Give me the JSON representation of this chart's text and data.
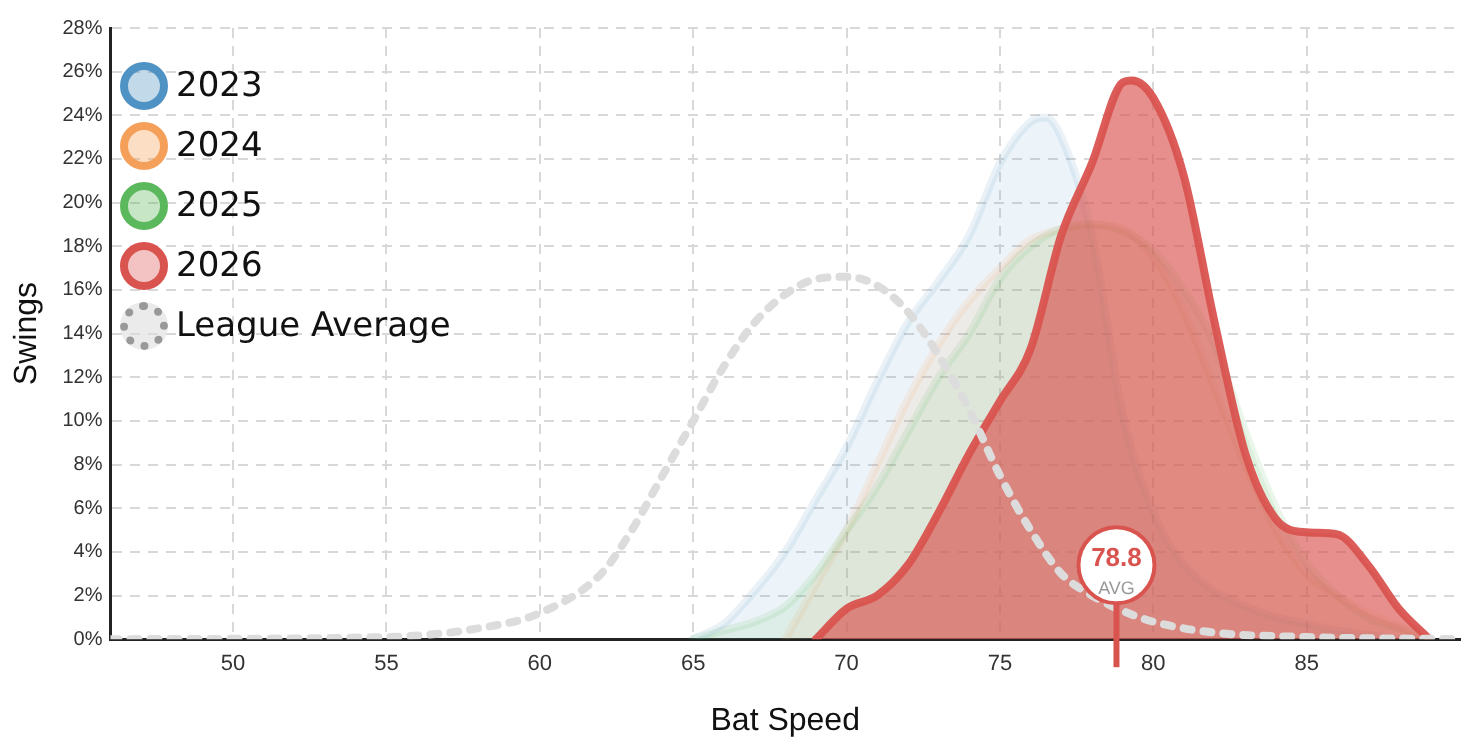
{
  "chart_data": {
    "type": "area",
    "xlabel": "Bat Speed",
    "ylabel": "Swings",
    "xlim": [
      46,
      90
    ],
    "xticks": [
      50,
      55,
      60,
      65,
      70,
      75,
      80,
      85
    ],
    "ylim": [
      0,
      28
    ],
    "yticks": [
      {
        "value": 0,
        "label": "0%"
      },
      {
        "value": 2,
        "label": "2%"
      },
      {
        "value": 4,
        "label": "4%"
      },
      {
        "value": 6,
        "label": "6%"
      },
      {
        "value": 8,
        "label": "8%"
      },
      {
        "value": 10,
        "label": "10%"
      },
      {
        "value": 12,
        "label": "12%"
      },
      {
        "value": 14,
        "label": "14%"
      },
      {
        "value": 16,
        "label": "16%"
      },
      {
        "value": 18,
        "label": "18%"
      },
      {
        "value": 20,
        "label": "20%"
      },
      {
        "value": 22,
        "label": "22%"
      },
      {
        "value": 24,
        "label": "24%"
      },
      {
        "value": 26,
        "label": "26%"
      },
      {
        "value": 28,
        "label": "28%"
      }
    ],
    "grid": true,
    "legend": "top left",
    "marker": "none",
    "series": [
      {
        "name": "2023",
        "color": "#4f93c4",
        "x": [
          65,
          66,
          67,
          68,
          69,
          70,
          71,
          72,
          73,
          74,
          75,
          76,
          76.5,
          77,
          78,
          79,
          80,
          81,
          82,
          83,
          84,
          85,
          86,
          87,
          88
        ],
        "values": [
          0,
          0.7,
          2.2,
          4,
          6.4,
          8.8,
          11.8,
          14.5,
          16.4,
          18.5,
          21.8,
          23.7,
          23.9,
          23,
          18.5,
          10.3,
          5.8,
          3.4,
          2.2,
          1.5,
          1,
          0.7,
          0.4,
          0.2,
          0
        ]
      },
      {
        "name": "2024",
        "color": "#f5a05a",
        "x": [
          68,
          69,
          70,
          71,
          72,
          73,
          74,
          75,
          76,
          77,
          78,
          79,
          80,
          81,
          82,
          83,
          84,
          85,
          86,
          87,
          88,
          89
        ],
        "values": [
          0,
          2.5,
          5,
          8,
          11,
          13.5,
          15.5,
          17,
          18.3,
          18.8,
          19,
          18.8,
          17.5,
          15,
          11.5,
          8,
          5,
          3,
          2,
          1.2,
          0.6,
          0
        ]
      },
      {
        "name": "2025",
        "color": "#5cb85c",
        "x": [
          65,
          66,
          67,
          68,
          69,
          70,
          71,
          72,
          73,
          74,
          75,
          76,
          77,
          78,
          79,
          80,
          81,
          82,
          83,
          84,
          85,
          86,
          87,
          88,
          89
        ],
        "values": [
          0,
          0.4,
          0.8,
          1.5,
          3,
          5,
          7,
          9.5,
          12,
          14,
          16.5,
          18,
          18.8,
          19,
          18.7,
          17.8,
          16,
          13.5,
          9.5,
          6,
          3.5,
          2,
          1,
          0.5,
          0
        ]
      },
      {
        "name": "2026",
        "color": "#d9534f",
        "x": [
          69,
          70,
          71,
          72,
          73,
          74,
          75,
          76,
          77,
          78,
          79,
          79.3,
          80,
          81,
          82,
          83,
          84,
          85,
          86,
          87,
          88,
          89
        ],
        "values": [
          0,
          1.4,
          2,
          3.4,
          5.8,
          8.5,
          10.9,
          13.3,
          18.5,
          21.8,
          25.5,
          25.6,
          24.8,
          21.2,
          14.5,
          8.5,
          5.5,
          4.9,
          4.8,
          3.4,
          1.4,
          0
        ]
      },
      {
        "name": "League Average",
        "type": "line",
        "line_style": "dotted",
        "color": "#dcdcdc",
        "x": [
          46,
          55,
          58,
          60,
          62,
          63,
          64,
          65,
          66,
          67,
          68,
          69,
          70,
          71,
          72,
          73,
          74,
          75,
          76,
          77,
          78,
          79,
          80,
          82,
          85,
          90
        ],
        "values": [
          0,
          0.1,
          0.5,
          1.2,
          3,
          5,
          7.5,
          10,
          12.5,
          14.5,
          15.8,
          16.5,
          16.6,
          16.2,
          15,
          13,
          10.5,
          7.5,
          5,
          3,
          2,
          1.3,
          0.8,
          0.3,
          0.1,
          0
        ]
      }
    ],
    "ref_lines": [
      {
        "axis": "x",
        "value": 78.8,
        "label": "78.8",
        "color": "#d9534f"
      }
    ],
    "annotations": [
      {
        "text": "AVG",
        "x": 78.8,
        "y": 1
      }
    ]
  }
}
